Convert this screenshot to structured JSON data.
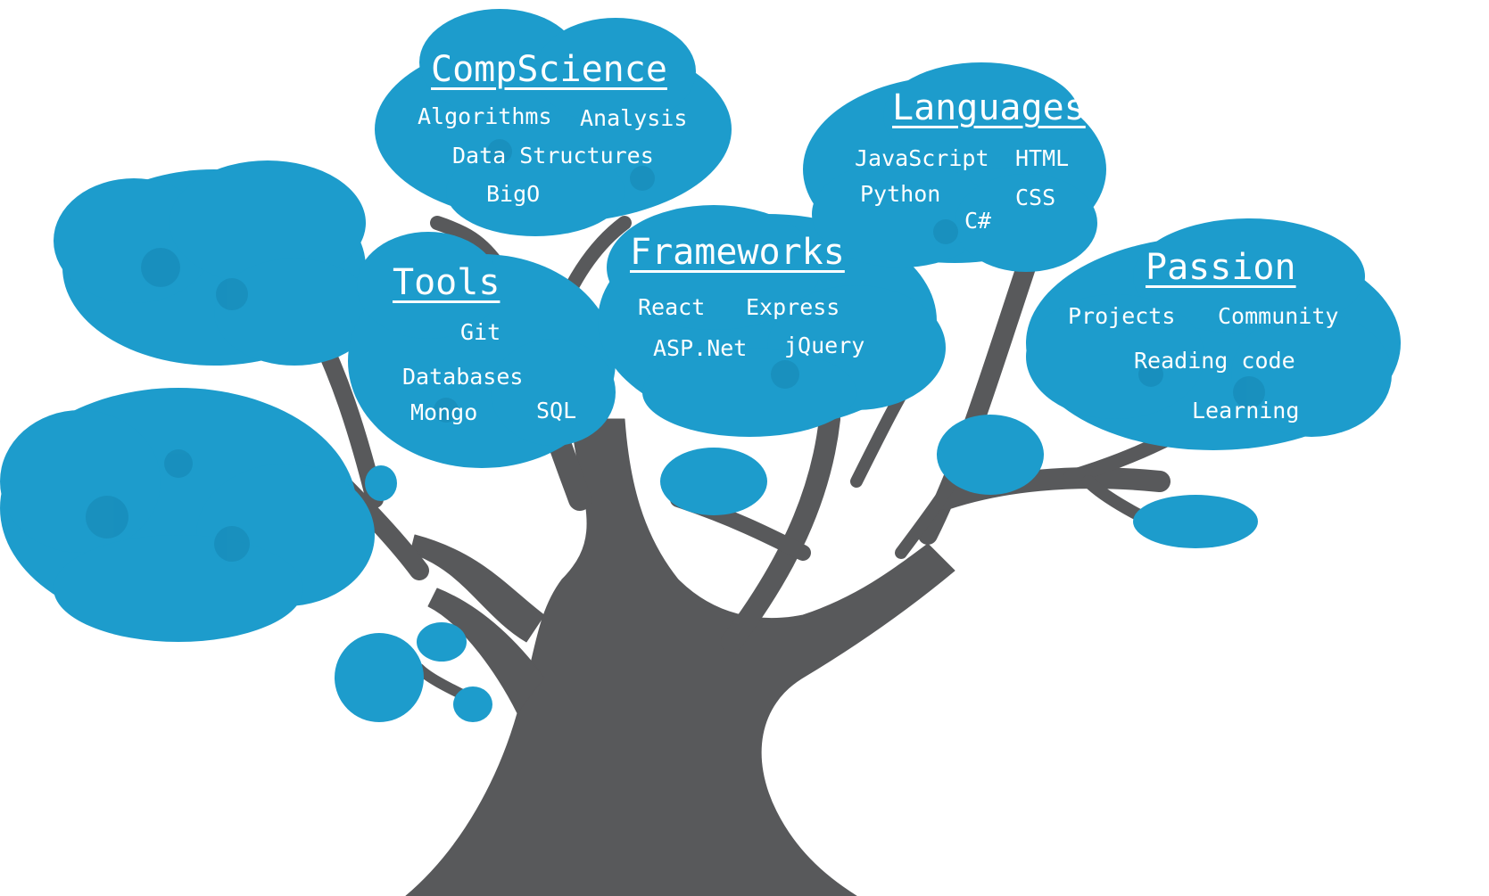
{
  "colors": {
    "foliage": "#1d9ccc",
    "foliage_dark": "#1586b3",
    "trunk": "#58595b",
    "label": "#ffffff"
  },
  "groups": {
    "compscience": {
      "title": "CompScience",
      "items": [
        "Algorithms",
        "Analysis",
        "Data Structures",
        "BigO"
      ]
    },
    "languages": {
      "title": "Languages",
      "items": [
        "JavaScript",
        "HTML",
        "Python",
        "CSS",
        "C#"
      ]
    },
    "frameworks": {
      "title": "Frameworks",
      "items": [
        "React",
        "Express",
        "ASP.Net",
        "jQuery"
      ]
    },
    "tools": {
      "title": "Tools",
      "items": [
        "Git",
        "Databases",
        "Mongo",
        "SQL"
      ]
    },
    "passion": {
      "title": "Passion",
      "items": [
        "Projects",
        "Community",
        "Reading code",
        "Learning"
      ]
    }
  }
}
